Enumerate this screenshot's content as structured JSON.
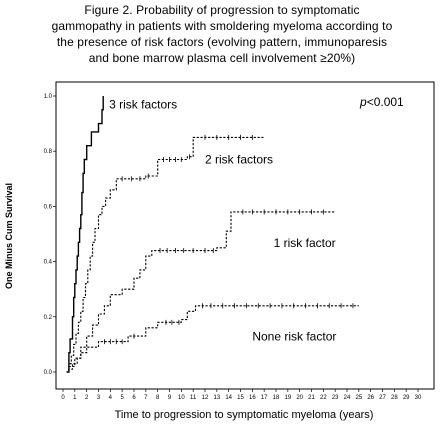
{
  "title_lines": [
    "Figure 2. Probability of progression to symptomatic",
    "gammopathy in patients with smoldering myeloma according to",
    "the presence of risk factors (evolving pattern, immunoparesis",
    "and bone marrow plasma cell involvement ≥20%)"
  ],
  "chart_data": {
    "type": "line",
    "step": true,
    "xlabel": "Time to progression to symptomatic myeloma (years)",
    "ylabel": "One Minus Cum Survival",
    "xlim": [
      0,
      31
    ],
    "ylim": [
      0,
      1.0
    ],
    "xticks": [
      "0",
      "1",
      "2",
      "3",
      "4",
      "5",
      "6",
      "7",
      "8",
      "9",
      "10",
      "11",
      "12",
      "13",
      "14",
      "15",
      "16",
      "17",
      "18",
      "19",
      "20",
      "21",
      "22",
      "23",
      "24",
      "25",
      "26",
      "27",
      "28",
      "29",
      "30"
    ],
    "yticks": [
      {
        "value": 0.0,
        "label": "0.0"
      },
      {
        "value": 0.2,
        "label": "0.2"
      },
      {
        "value": 0.4,
        "label": "0.4"
      },
      {
        "value": 0.6,
        "label": "0.6"
      },
      {
        "value": 0.8,
        "label": "0.8"
      },
      {
        "value": 1.0,
        "label": "1.0"
      }
    ],
    "annotation": {
      "prefix": "p",
      "text": "<0.001"
    },
    "series": [
      {
        "name": "3 risk factors",
        "dashed": false,
        "points": [
          [
            0.3,
            0.0
          ],
          [
            0.5,
            0.07
          ],
          [
            0.6,
            0.12
          ],
          [
            0.8,
            0.2
          ],
          [
            0.9,
            0.27
          ],
          [
            1.0,
            0.32
          ],
          [
            1.1,
            0.37
          ],
          [
            1.2,
            0.42
          ],
          [
            1.3,
            0.47
          ],
          [
            1.4,
            0.52
          ],
          [
            1.5,
            0.57
          ],
          [
            1.6,
            0.65
          ],
          [
            1.7,
            0.72
          ],
          [
            1.8,
            0.77
          ],
          [
            2.0,
            0.82
          ],
          [
            2.4,
            0.87
          ],
          [
            3.0,
            0.9
          ],
          [
            3.3,
            0.95
          ],
          [
            3.4,
            1.0
          ]
        ],
        "censored": [],
        "label_pos": [
          3.9,
          0.955
        ]
      },
      {
        "name": "2 risk factors",
        "dashed": true,
        "points": [
          [
            0.3,
            0.0
          ],
          [
            0.5,
            0.03
          ],
          [
            0.7,
            0.06
          ],
          [
            0.9,
            0.1
          ],
          [
            1.1,
            0.14
          ],
          [
            1.3,
            0.18
          ],
          [
            1.5,
            0.22
          ],
          [
            1.7,
            0.27
          ],
          [
            1.9,
            0.32
          ],
          [
            2.1,
            0.37
          ],
          [
            2.3,
            0.42
          ],
          [
            2.5,
            0.47
          ],
          [
            2.7,
            0.52
          ],
          [
            3.0,
            0.57
          ],
          [
            3.3,
            0.6
          ],
          [
            3.6,
            0.63
          ],
          [
            4.0,
            0.66
          ],
          [
            4.5,
            0.7
          ],
          [
            7.0,
            0.71
          ],
          [
            8.0,
            0.77
          ],
          [
            10.5,
            0.78
          ],
          [
            11.0,
            0.85
          ],
          [
            17.0,
            0.85
          ]
        ],
        "censored": [
          5.0,
          5.8,
          6.5,
          7.2,
          8.5,
          9.0,
          9.5,
          10.0,
          10.7,
          12.0,
          13.0,
          14.0,
          15.0,
          16.0
        ],
        "label_pos": [
          12.0,
          0.755
        ]
      },
      {
        "name": "1 risk factor",
        "dashed": true,
        "points": [
          [
            0.3,
            0.0
          ],
          [
            0.5,
            0.02
          ],
          [
            1.0,
            0.05
          ],
          [
            1.5,
            0.09
          ],
          [
            2.0,
            0.13
          ],
          [
            2.5,
            0.17
          ],
          [
            3.0,
            0.21
          ],
          [
            3.5,
            0.24
          ],
          [
            4.0,
            0.28
          ],
          [
            5.0,
            0.3
          ],
          [
            6.0,
            0.34
          ],
          [
            6.5,
            0.37
          ],
          [
            7.0,
            0.42
          ],
          [
            7.5,
            0.44
          ],
          [
            13.0,
            0.45
          ],
          [
            13.8,
            0.51
          ],
          [
            14.2,
            0.58
          ],
          [
            23.0,
            0.58
          ]
        ],
        "censored": [
          8.2,
          8.8,
          9.5,
          10.2,
          11.0,
          12.0,
          12.7,
          15.2,
          16.0,
          17.0,
          18.0,
          19.0,
          20.0,
          21.0,
          22.0
        ],
        "label_pos": [
          17.8,
          0.452
        ]
      },
      {
        "name": "None risk factor",
        "dashed": true,
        "points": [
          [
            0.3,
            0.0
          ],
          [
            0.5,
            0.01
          ],
          [
            0.8,
            0.03
          ],
          [
            1.2,
            0.05
          ],
          [
            1.5,
            0.07
          ],
          [
            2.0,
            0.09
          ],
          [
            3.0,
            0.11
          ],
          [
            5.5,
            0.13
          ],
          [
            7.0,
            0.16
          ],
          [
            8.0,
            0.18
          ],
          [
            10.0,
            0.19
          ],
          [
            10.5,
            0.22
          ],
          [
            11.2,
            0.24
          ],
          [
            25.0,
            0.24
          ]
        ],
        "censored": [
          3.5,
          4.0,
          4.5,
          5.0,
          6.0,
          8.7,
          9.2,
          9.8,
          11.8,
          12.5,
          13.5,
          14.5,
          15.5,
          16.5,
          17.5,
          18.5,
          19.5,
          20.5,
          21.5,
          22.5,
          23.5,
          24.5
        ],
        "label_pos": [
          16.0,
          0.115
        ]
      }
    ]
  }
}
